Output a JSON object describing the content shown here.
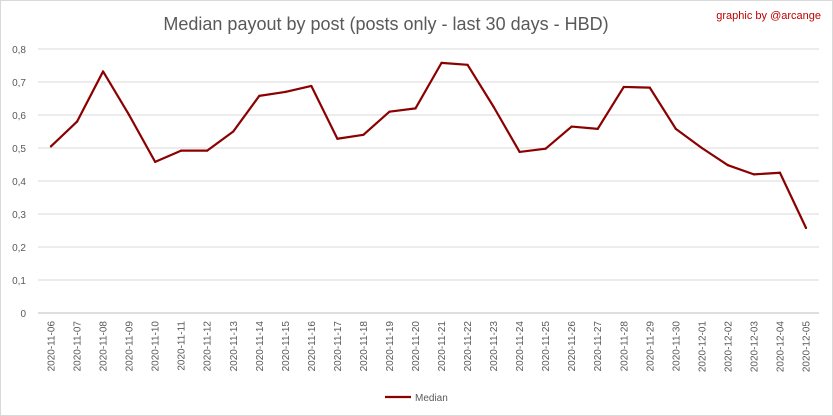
{
  "credit": "graphic by @arcange",
  "chart_data": {
    "type": "line",
    "title": "Median payout by post (posts only - last 30 days - HBD)",
    "xlabel": "",
    "ylabel": "",
    "ylim": [
      0,
      0.8
    ],
    "yticks": [
      "0",
      "0,1",
      "0,2",
      "0,3",
      "0,4",
      "0,5",
      "0,6",
      "0,7",
      "0,8"
    ],
    "grid": true,
    "legend_position": "bottom",
    "categories": [
      "2020-11-06",
      "2020-11-07",
      "2020-11-08",
      "2020-11-09",
      "2020-11-10",
      "2020-11-11",
      "2020-11-12",
      "2020-11-13",
      "2020-11-14",
      "2020-11-15",
      "2020-11-16",
      "2020-11-17",
      "2020-11-18",
      "2020-11-19",
      "2020-11-20",
      "2020-11-21",
      "2020-11-22",
      "2020-11-23",
      "2020-11-24",
      "2020-11-25",
      "2020-11-26",
      "2020-11-27",
      "2020-11-28",
      "2020-11-29",
      "2020-11-30",
      "2020-12-01",
      "2020-12-02",
      "2020-12-03",
      "2020-12-04",
      "2020-12-05"
    ],
    "series": [
      {
        "name": "Median",
        "color": "#8b0000",
        "values": [
          0.505,
          0.58,
          0.732,
          0.6,
          0.458,
          0.492,
          0.492,
          0.55,
          0.658,
          0.67,
          0.688,
          0.528,
          0.54,
          0.61,
          0.62,
          0.758,
          0.752,
          0.625,
          0.488,
          0.498,
          0.565,
          0.558,
          0.685,
          0.683,
          0.558,
          0.5,
          0.448,
          0.42,
          0.425,
          0.258
        ]
      }
    ]
  }
}
